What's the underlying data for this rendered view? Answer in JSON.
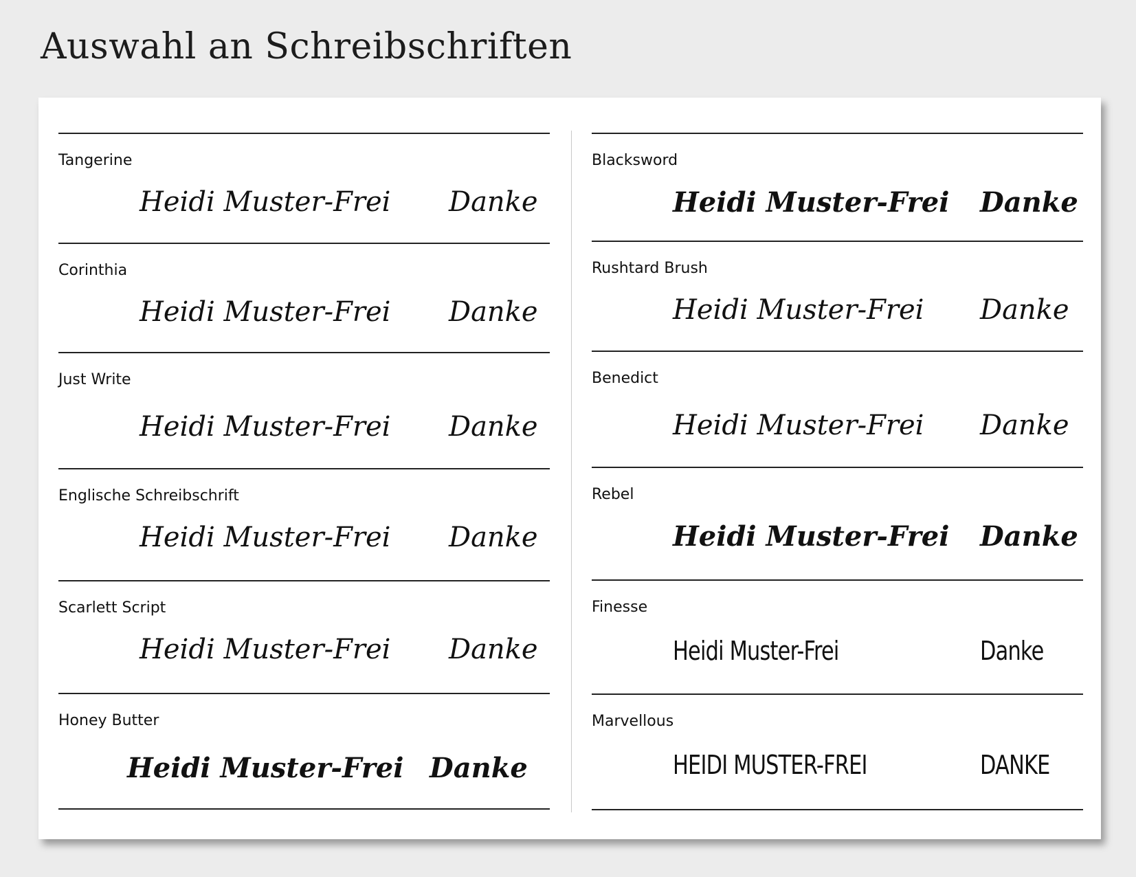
{
  "title": "Auswahl an Schreibschriften",
  "left": [
    {
      "font": "Tangerine",
      "sample": "Heidi Muster-Frei",
      "thanks": "Danke"
    },
    {
      "font": "Corinthia",
      "sample": "Heidi Muster-Frei",
      "thanks": "Danke"
    },
    {
      "font": "Just Write",
      "sample": "Heidi Muster-Frei",
      "thanks": "Danke"
    },
    {
      "font": "Englische Schreibschrift",
      "sample": "Heidi Muster-Frei",
      "thanks": "Danke"
    },
    {
      "font": "Scarlett Script",
      "sample": "Heidi Muster-Frei",
      "thanks": "Danke"
    },
    {
      "font": "Honey Butter",
      "sample": "Heidi Muster-Frei",
      "thanks": "Danke"
    }
  ],
  "right": [
    {
      "font": "Blacksword",
      "sample": "Heidi Muster-Frei",
      "thanks": "Danke"
    },
    {
      "font": "Rushtard Brush",
      "sample": "Heidi Muster-Frei",
      "thanks": "Danke"
    },
    {
      "font": "Benedict",
      "sample": "Heidi Muster-Frei",
      "thanks": "Danke"
    },
    {
      "font": "Rebel",
      "sample": "Heidi Muster-Frei",
      "thanks": "Danke"
    },
    {
      "font": "Finesse",
      "sample": "Heidi Muster-Frei",
      "thanks": "Danke"
    },
    {
      "font": "Marvellous",
      "sample": "HEIDI MUSTER-FREI",
      "thanks": "DANKE"
    }
  ]
}
